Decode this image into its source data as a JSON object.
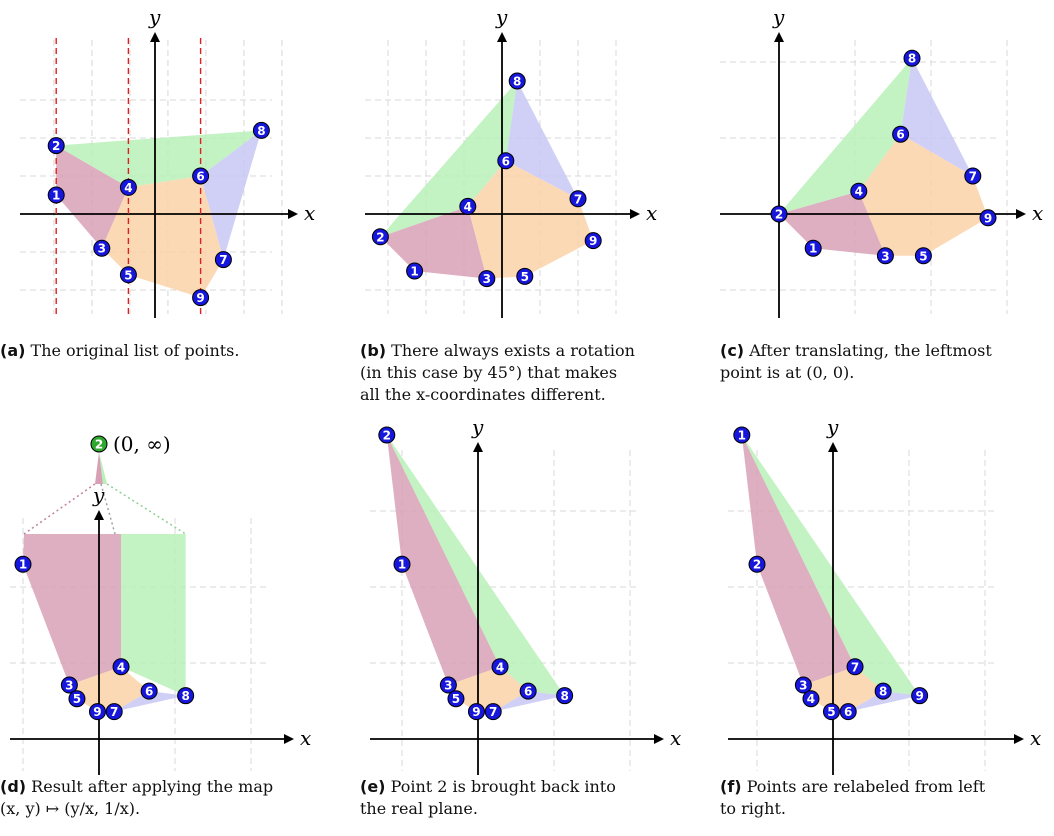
{
  "axes": {
    "x_label": "x",
    "y_label": "y"
  },
  "infinity_label": "(0, ∞)",
  "colors": {
    "red_region": "#d8a0b6",
    "green_region": "#b8f0b8",
    "blue_region": "#c8c8f4",
    "orange_region": "#fcd2a8",
    "node": "#1616dc",
    "node_special": "#2fa82f",
    "cut_line": "#e02020"
  },
  "panels": [
    {
      "id": "a",
      "caption_tag": "(a)",
      "caption_lines": [
        "The original list of points."
      ],
      "points": [
        {
          "label": "1",
          "x": -1.3,
          "y": 0.25
        },
        {
          "label": "2",
          "x": -1.3,
          "y": 0.9
        },
        {
          "label": "3",
          "x": -0.7,
          "y": -0.45
        },
        {
          "label": "4",
          "x": -0.35,
          "y": 0.35
        },
        {
          "label": "5",
          "x": -0.35,
          "y": -0.8
        },
        {
          "label": "6",
          "x": 0.6,
          "y": 0.5
        },
        {
          "label": "7",
          "x": 0.9,
          "y": -0.6
        },
        {
          "label": "8",
          "x": 1.4,
          "y": 1.1
        },
        {
          "label": "9",
          "x": 0.6,
          "y": -1.1
        }
      ]
    },
    {
      "id": "b",
      "caption_tag": "(b)",
      "caption_lines": [
        "There always exists a rotation",
        "(in this case by 45°) that makes",
        "all the x-coordinates different."
      ],
      "points": [
        {
          "label": "1",
          "x": -1.15,
          "y": -0.75
        },
        {
          "label": "2",
          "x": -1.6,
          "y": -0.3
        },
        {
          "label": "3",
          "x": -0.2,
          "y": -0.85
        },
        {
          "label": "4",
          "x": -0.45,
          "y": 0.1
        },
        {
          "label": "5",
          "x": 0.3,
          "y": -0.82
        },
        {
          "label": "6",
          "x": 0.05,
          "y": 0.7
        },
        {
          "label": "7",
          "x": 1.0,
          "y": 0.2
        },
        {
          "label": "8",
          "x": 0.2,
          "y": 1.75
        },
        {
          "label": "9",
          "x": 1.2,
          "y": -0.35
        }
      ]
    },
    {
      "id": "c",
      "caption_tag": "(c)",
      "caption_lines": [
        "After translating, the leftmost",
        "point is at (0, 0)."
      ],
      "points": [
        {
          "label": "1",
          "x": 0.45,
          "y": -0.45
        },
        {
          "label": "2",
          "x": 0.0,
          "y": 0.0
        },
        {
          "label": "3",
          "x": 1.4,
          "y": -0.55
        },
        {
          "label": "4",
          "x": 1.05,
          "y": 0.3
        },
        {
          "label": "5",
          "x": 1.9,
          "y": -0.55
        },
        {
          "label": "6",
          "x": 1.6,
          "y": 1.05
        },
        {
          "label": "7",
          "x": 2.55,
          "y": 0.5
        },
        {
          "label": "8",
          "x": 1.75,
          "y": 2.05
        },
        {
          "label": "9",
          "x": 2.75,
          "y": -0.05
        }
      ]
    },
    {
      "id": "d",
      "caption_tag": "(d)",
      "caption_lines": [
        "Result after applying the map",
        "(x, y) ↦ (y/x, 1/x)."
      ],
      "points": [
        {
          "label": "1",
          "x": -1.0,
          "y": 2.3
        },
        {
          "label": "3",
          "x": -0.39,
          "y": 0.71
        },
        {
          "label": "4",
          "x": 0.29,
          "y": 0.95
        },
        {
          "label": "5",
          "x": -0.29,
          "y": 0.53
        },
        {
          "label": "6",
          "x": 0.66,
          "y": 0.63
        },
        {
          "label": "7",
          "x": 0.2,
          "y": 0.36
        },
        {
          "label": "8",
          "x": 1.14,
          "y": 0.57
        },
        {
          "label": "9",
          "x": -0.02,
          "y": 0.36
        }
      ]
    },
    {
      "id": "e",
      "caption_tag": "(e)",
      "caption_lines": [
        "Point 2 is brought back into",
        "the real plane."
      ],
      "points": [
        {
          "label": "1",
          "x": -1.0,
          "y": 2.3
        },
        {
          "label": "2",
          "x": -1.2,
          "y": 4.0
        },
        {
          "label": "3",
          "x": -0.39,
          "y": 0.71
        },
        {
          "label": "4",
          "x": 0.29,
          "y": 0.95
        },
        {
          "label": "5",
          "x": -0.29,
          "y": 0.53
        },
        {
          "label": "6",
          "x": 0.66,
          "y": 0.63
        },
        {
          "label": "7",
          "x": 0.2,
          "y": 0.36
        },
        {
          "label": "8",
          "x": 1.14,
          "y": 0.57
        },
        {
          "label": "9",
          "x": -0.02,
          "y": 0.36
        }
      ]
    },
    {
      "id": "f",
      "caption_tag": "(f)",
      "caption_lines": [
        "Points are relabeled from left",
        "to right."
      ],
      "points": [
        {
          "label": "1",
          "x": -1.2,
          "y": 4.0
        },
        {
          "label": "2",
          "x": -1.0,
          "y": 2.3
        },
        {
          "label": "3",
          "x": -0.39,
          "y": 0.71
        },
        {
          "label": "4",
          "x": -0.29,
          "y": 0.53
        },
        {
          "label": "5",
          "x": -0.02,
          "y": 0.36
        },
        {
          "label": "6",
          "x": 0.2,
          "y": 0.36
        },
        {
          "label": "7",
          "x": 0.29,
          "y": 0.95
        },
        {
          "label": "8",
          "x": 0.66,
          "y": 0.63
        },
        {
          "label": "9",
          "x": 1.14,
          "y": 0.57
        }
      ]
    }
  ]
}
